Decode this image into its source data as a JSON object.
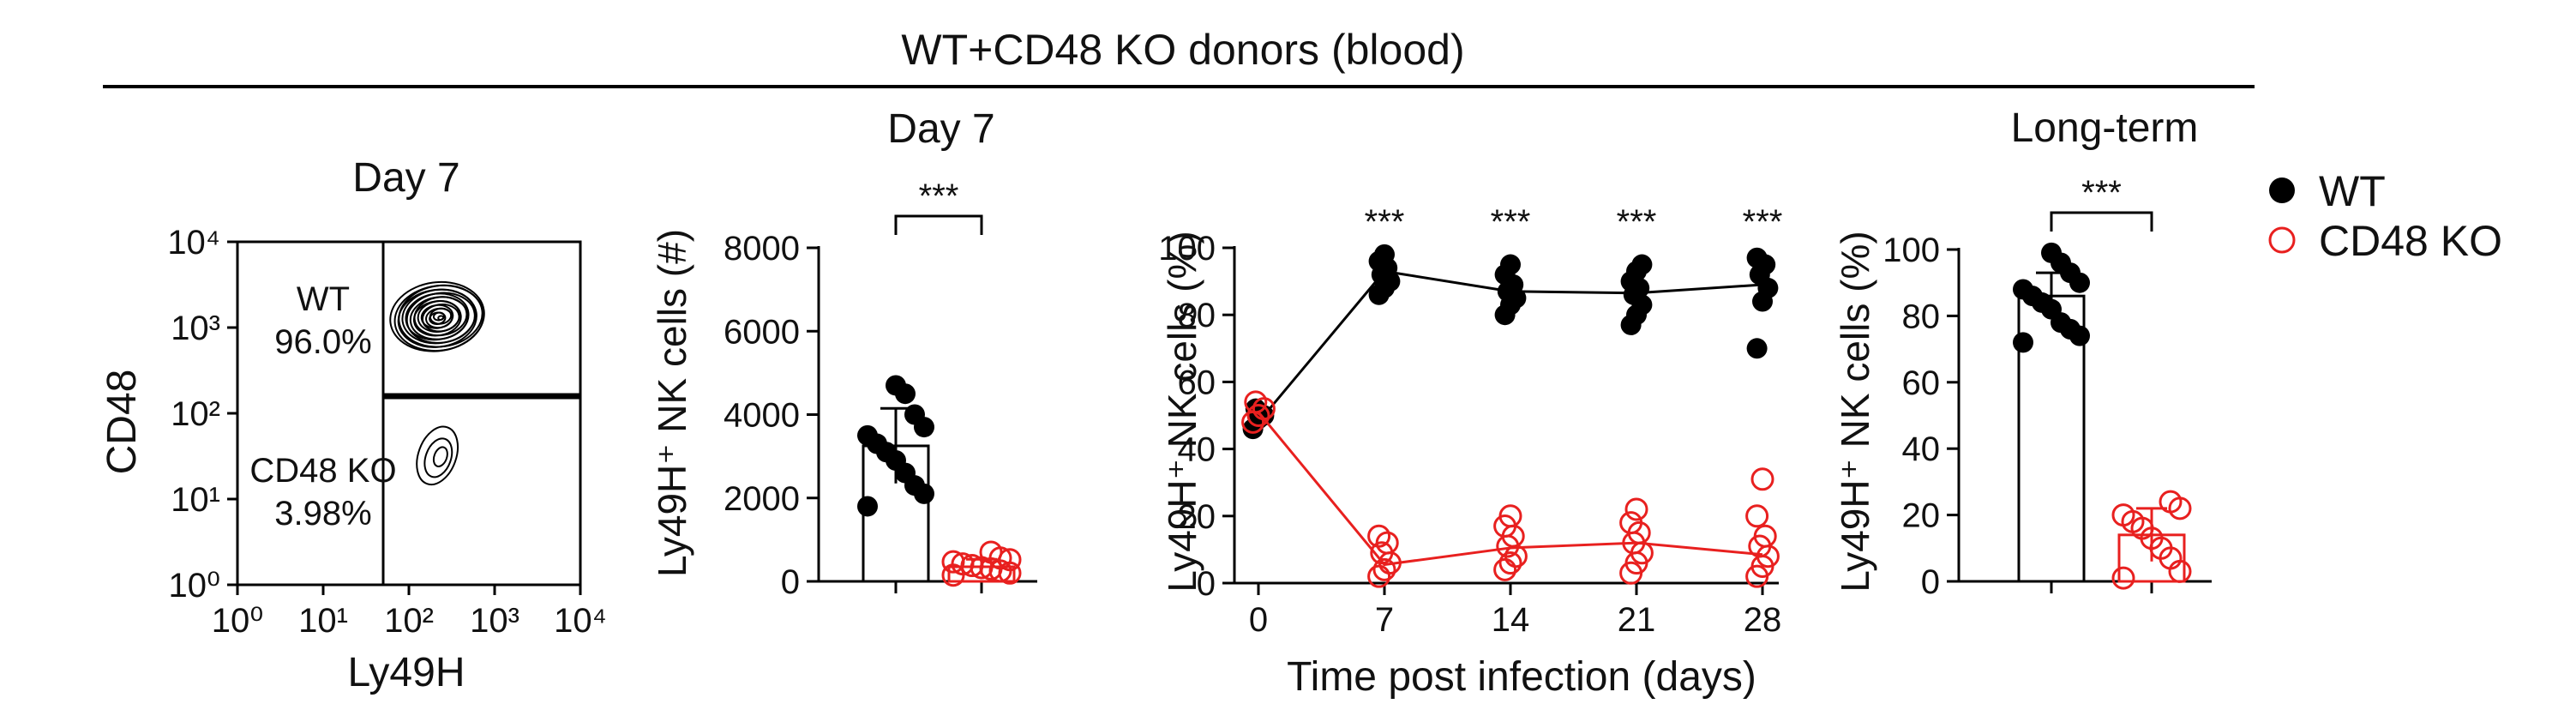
{
  "figure": {
    "header": "WT+CD48 KO donors (blood)",
    "colors": {
      "wt": "#000000",
      "ko": "#e8201f"
    },
    "legend": [
      {
        "label": "WT",
        "marker": "filled-circle",
        "color": "#000000"
      },
      {
        "label": "CD48 KO",
        "marker": "open-circle",
        "color": "#e8201f"
      }
    ]
  },
  "chart_data": [
    {
      "type": "contour",
      "panel": "flow",
      "title": "Day 7",
      "xlabel": "Ly49H",
      "ylabel": "CD48",
      "x_ticks": [
        "10⁰",
        "10¹",
        "10²",
        "10³",
        "10⁴"
      ],
      "y_ticks": [
        "10⁴",
        "10³",
        "10²",
        "10¹",
        "10⁰"
      ],
      "scale": "log",
      "xlim": [
        0,
        4
      ],
      "ylim": [
        0,
        4
      ],
      "gates": [
        {
          "name": "WT",
          "percent": "96.0%",
          "x_from": 1.7,
          "x_to": 4,
          "y_from": 2.2,
          "y_to": 4
        },
        {
          "name": "CD48 KO",
          "percent": "3.98%",
          "x_from": 1.7,
          "x_to": 4,
          "y_from": 0,
          "y_to": 2.2
        }
      ],
      "populations": [
        {
          "center": [
            2.35,
            3.13
          ],
          "spread": [
            0.55,
            0.4
          ],
          "levels": 18
        },
        {
          "center": [
            2.35,
            1.5
          ],
          "spread": [
            0.22,
            0.35
          ],
          "levels": 3
        }
      ]
    },
    {
      "type": "bar",
      "panel": "count",
      "title": "Day 7",
      "ylabel": "Ly49H⁺ NK cells (#)",
      "ylim": [
        0,
        8000
      ],
      "y_ticks": [
        0,
        2000,
        4000,
        6000,
        8000
      ],
      "significance": "***",
      "series": [
        {
          "name": "WT",
          "mean": 3250,
          "sd": 900,
          "points": [
            1800,
            2100,
            2300,
            2600,
            2900,
            3100,
            3300,
            3500,
            3700,
            4000,
            4500,
            4700
          ]
        },
        {
          "name": "CD48 KO",
          "mean": 350,
          "sd": 180,
          "points": [
            150,
            200,
            250,
            300,
            330,
            380,
            420,
            470,
            520,
            560,
            700
          ]
        }
      ]
    },
    {
      "type": "line",
      "panel": "time",
      "xlabel": "Time post infection (days)",
      "ylabel": "Ly49H⁺ NK cells (%)",
      "x": [
        0,
        7,
        14,
        21,
        28
      ],
      "x_ticks": [
        0,
        7,
        14,
        21,
        28
      ],
      "xlim": [
        0,
        28
      ],
      "ylim": [
        0,
        100
      ],
      "y_ticks": [
        0,
        20,
        40,
        60,
        80,
        100
      ],
      "significance": [
        "",
        "***",
        "***",
        "***",
        "***"
      ],
      "series": [
        {
          "name": "WT",
          "means": [
            48,
            93,
            87,
            86.5,
            89
          ],
          "points": [
            [
              46,
              49,
              50,
              52
            ],
            [
              86,
              88,
              90,
              92,
              94,
              96,
              98
            ],
            [
              80,
              83,
              85,
              87,
              89,
              92,
              95
            ],
            [
              77,
              80,
              83,
              86,
              88,
              90,
              93,
              95
            ],
            [
              70,
              84,
              88,
              92,
              95,
              97
            ]
          ]
        },
        {
          "name": "CD48 KO",
          "means": [
            51,
            5.5,
            10.5,
            12,
            8.5
          ],
          "points": [
            [
              48,
              50,
              52,
              54
            ],
            [
              2,
              4,
              6,
              9,
              12,
              14
            ],
            [
              4,
              6,
              8,
              11,
              14,
              17,
              20
            ],
            [
              3,
              6,
              9,
              12,
              15,
              18,
              22
            ],
            [
              2,
              5,
              8,
              11,
              14,
              20,
              31
            ]
          ]
        }
      ]
    },
    {
      "type": "bar",
      "panel": "longterm",
      "title": "Long-term",
      "ylabel": "Ly49H⁺ NK cells (%)",
      "ylim": [
        0,
        100
      ],
      "y_ticks": [
        0,
        20,
        40,
        60,
        80,
        100
      ],
      "significance": "***",
      "series": [
        {
          "name": "WT",
          "mean": 86,
          "sd": 7,
          "points": [
            72,
            74,
            76,
            78,
            82,
            84,
            86,
            88,
            90,
            93,
            96,
            99
          ]
        },
        {
          "name": "CD48 KO",
          "mean": 14,
          "sd": 8,
          "points": [
            1,
            3,
            7,
            10,
            13,
            16,
            18,
            20,
            22,
            24
          ]
        }
      ]
    }
  ]
}
